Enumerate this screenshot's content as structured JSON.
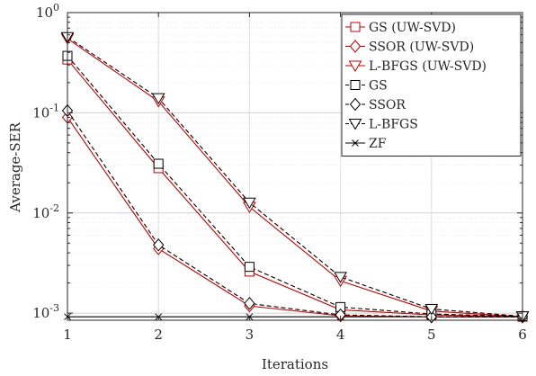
{
  "chart_data": {
    "type": "line",
    "xlabel": "Iterations",
    "ylabel": "Average-SER",
    "x": [
      1,
      2,
      3,
      4,
      5,
      6
    ],
    "xlim": [
      1,
      6
    ],
    "ylim": [
      0.00085,
      1
    ],
    "yscale": "log",
    "grid": true,
    "legend_position": "top-right",
    "x_ticks": [
      "1",
      "2",
      "3",
      "4",
      "5",
      "6"
    ],
    "y_ticks": [
      {
        "value": 0.001,
        "base": "10",
        "exp": "-3"
      },
      {
        "value": 0.01,
        "base": "10",
        "exp": "-2"
      },
      {
        "value": 0.1,
        "base": "10",
        "exp": "-1"
      },
      {
        "value": 1,
        "base": "10",
        "exp": "0"
      }
    ],
    "series": [
      {
        "name": "GS (UW-SVD)",
        "color": "#c00000",
        "dash": "solid",
        "marker": "square",
        "values": [
          0.34,
          0.028,
          0.0026,
          0.00108,
          0.00096,
          0.00092
        ]
      },
      {
        "name": "SSOR (UW-SVD)",
        "color": "#c00000",
        "dash": "solid",
        "marker": "diamond",
        "values": [
          0.09,
          0.0044,
          0.00118,
          0.00094,
          0.00092,
          0.00092
        ]
      },
      {
        "name": "L-BFGS (UW-SVD)",
        "color": "#c00000",
        "dash": "solid",
        "marker": "triangle-down",
        "values": [
          0.55,
          0.13,
          0.0115,
          0.0021,
          0.00105,
          0.00092
        ]
      },
      {
        "name": "GS",
        "color": "#000000",
        "dash": "dashed",
        "marker": "square",
        "values": [
          0.37,
          0.031,
          0.0029,
          0.00115,
          0.00098,
          0.00093
        ]
      },
      {
        "name": "SSOR",
        "color": "#000000",
        "dash": "dashed",
        "marker": "diamond",
        "values": [
          0.105,
          0.0048,
          0.00125,
          0.00096,
          0.00092,
          0.00092
        ]
      },
      {
        "name": "L-BFGS",
        "color": "#000000",
        "dash": "dashed",
        "marker": "triangle-down",
        "values": [
          0.57,
          0.14,
          0.0127,
          0.0023,
          0.0011,
          0.00093
        ]
      },
      {
        "name": "ZF",
        "color": "#000000",
        "dash": "solid",
        "marker": "x",
        "values": [
          0.00092,
          0.00092,
          0.00092,
          0.00092,
          0.00092,
          0.00092
        ]
      }
    ]
  }
}
